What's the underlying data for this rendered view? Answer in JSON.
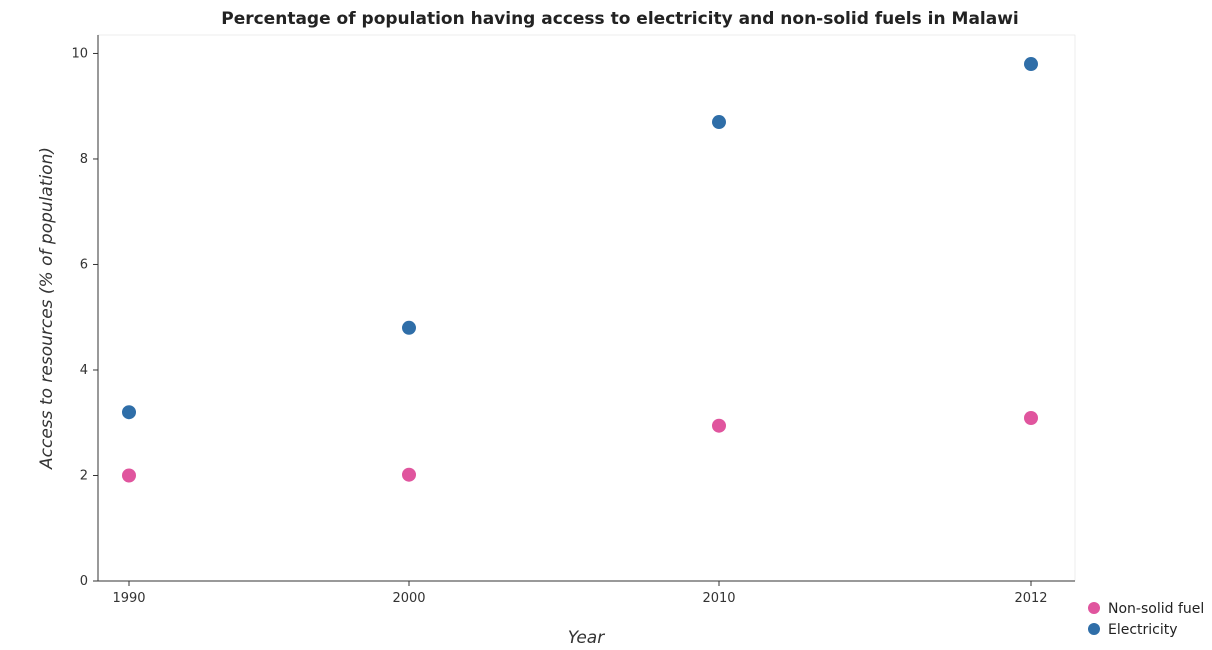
{
  "chart_data": {
    "type": "scatter",
    "title": "Percentage of population having access to electricity and non-solid fuels in Malawi",
    "xlabel": "Year",
    "ylabel": "Access to resources (% of population)",
    "categories": [
      "1990",
      "2000",
      "2010",
      "2012"
    ],
    "ylim": [
      0,
      10.35
    ],
    "yticks": [
      0,
      2,
      4,
      6,
      8,
      10
    ],
    "grid": false,
    "legend_position": "bottom-right",
    "series": [
      {
        "name": "Non-solid fuel",
        "color": "#e0559e",
        "values": [
          2.0,
          2.015,
          2.944,
          3.09
        ]
      },
      {
        "name": "Electricity",
        "color": "#2f6ea8",
        "values": [
          3.2,
          4.8,
          8.7,
          9.8
        ]
      }
    ]
  }
}
